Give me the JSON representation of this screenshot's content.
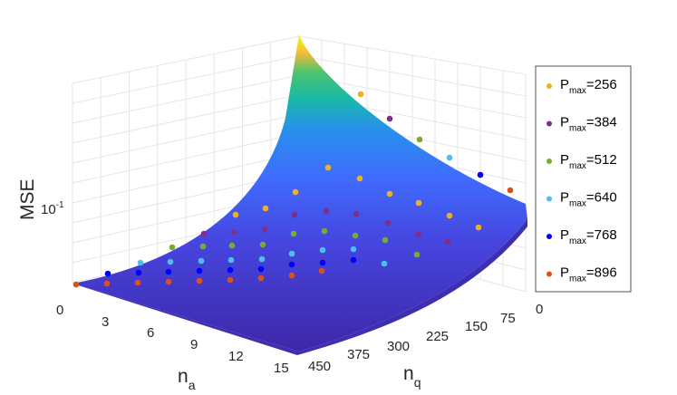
{
  "chart_data": {
    "type": "surface-scatter-3d",
    "axes": {
      "x": {
        "label": "n",
        "label_sub": "a",
        "ticks": [
          "0",
          "3",
          "6",
          "9",
          "12",
          "15"
        ],
        "range": [
          0,
          15
        ]
      },
      "y": {
        "label": "n",
        "label_sub": "q",
        "ticks": [
          "450",
          "375",
          "300",
          "225",
          "150",
          "75",
          "0"
        ],
        "range": [
          0,
          450
        ]
      },
      "z": {
        "label": "MSE",
        "scale": "log",
        "ticks": [
          "10^-1"
        ],
        "tick_base": "10",
        "tick_exp": "-1"
      }
    },
    "grid": true,
    "legend": {
      "placement": "right",
      "entries": [
        {
          "label": "P",
          "sub": "max",
          "value": "=256",
          "color": "#EDB120"
        },
        {
          "label": "P",
          "sub": "max",
          "value": "=384",
          "color": "#7E2F8E"
        },
        {
          "label": "P",
          "sub": "max",
          "value": "=512",
          "color": "#77AC30"
        },
        {
          "label": "P",
          "sub": "max",
          "value": "=640",
          "color": "#4DBEEE"
        },
        {
          "label": "P",
          "sub": "max",
          "value": "=768",
          "color": "#0000FF"
        },
        {
          "label": "P",
          "sub": "max",
          "value": "=896",
          "color": "#D95319"
        }
      ]
    },
    "surface_colormap": [
      "#3E26A8",
      "#4746E8",
      "#3F6CFE",
      "#2790EC",
      "#19A9D3",
      "#1AB9A6",
      "#4BC46F",
      "#A6C43C",
      "#F0BB3A",
      "#F9FB15"
    ]
  }
}
